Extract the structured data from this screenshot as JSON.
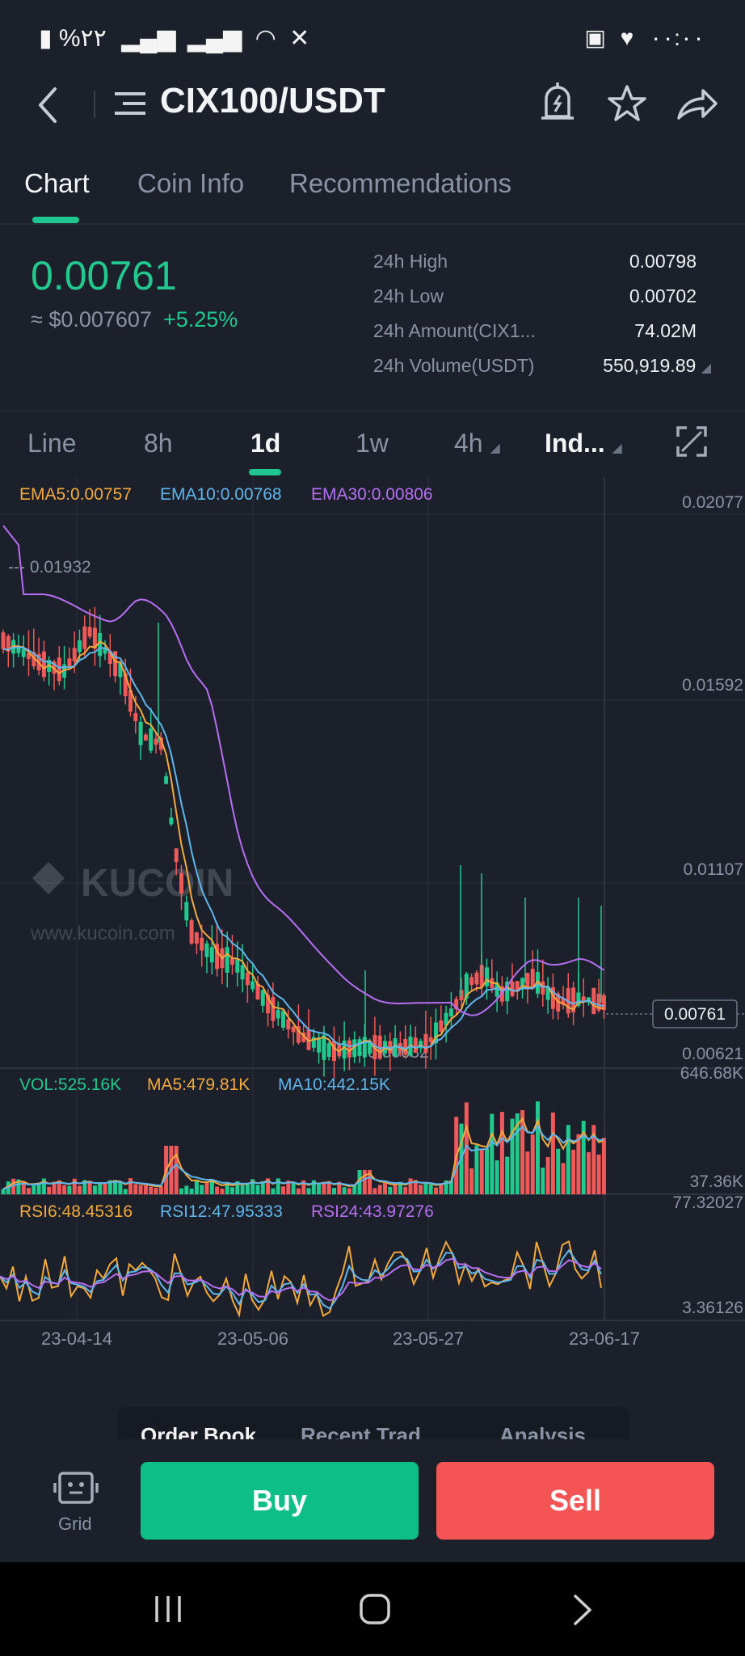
{
  "status_bar": {
    "left_text": "%۲۲",
    "time": "۰۰:۰۰"
  },
  "header": {
    "pair": "CIX100/USDT"
  },
  "tabs": [
    "Chart",
    "Coin Info",
    "Recommendations"
  ],
  "price": {
    "last": "0.00761",
    "usd": "≈ $0.007607",
    "change": "+5.25%",
    "stats": [
      {
        "label": "24h High",
        "value": "0.00798"
      },
      {
        "label": "24h Low",
        "value": "0.00702"
      },
      {
        "label": "24h Amount(CIX1...",
        "value": "74.02M"
      },
      {
        "label": "24h Volume(USDT)",
        "value": "550,919.89"
      }
    ]
  },
  "intervals": [
    "Line",
    "8h",
    "1d",
    "1w",
    "4h",
    "Ind..."
  ],
  "indicators": {
    "ema5": "EMA5:0.00757",
    "ema10": "EMA10:0.00768",
    "ema30": "EMA30:0.00806",
    "vol": "VOL:525.16K",
    "ma5": "MA5:479.81K",
    "ma10": "MA10:442.15K",
    "rsi6": "RSI6:48.45316",
    "rsi12": "RSI12:47.95333",
    "rsi24": "RSI24:43.97276"
  },
  "watermark": {
    "brand": "KUCOIN",
    "url": "www.kucoin.com"
  },
  "colors": {
    "up": "#22c98f",
    "down": "#f05959",
    "ema5": "#f4a93c",
    "ema10": "#5fb6ec",
    "ema30": "#b66ef2",
    "bg": "#1b202a"
  },
  "chart_data": {
    "type": "candlestick",
    "price_axis_ticks": [
      "0.02077",
      "0.01592",
      "0.01107",
      "0.00621"
    ],
    "volume_axis_ticks": [
      "646.68K",
      "37.36K"
    ],
    "rsi_axis_ticks": [
      "77.32027",
      "3.36126"
    ],
    "x_tick_labels": [
      "23-04-14",
      "23-05-06",
      "23-05-27",
      "23-06-17"
    ],
    "max_marker": "--- 0.01932",
    "min_marker": "--- 0.00632",
    "last_price_label": "0.00761",
    "ylim": [
      0.00621,
      0.02077
    ]
  },
  "bottom": {
    "tabs": [
      "Order Book",
      "Recent Trad",
      "Analysis"
    ],
    "grid_label": "Grid",
    "buy": "Buy",
    "sell": "Sell"
  }
}
